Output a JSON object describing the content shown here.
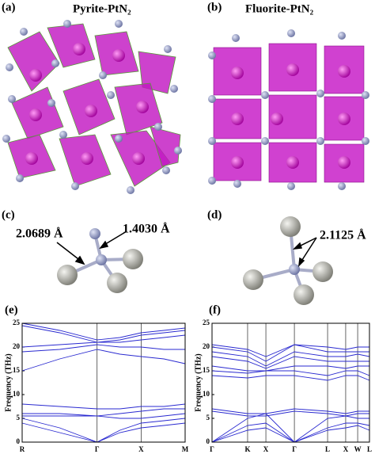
{
  "panels": [
    {
      "label": "(a)",
      "title": "Pyrite-PtN₂"
    },
    {
      "label": "(b)",
      "title": "Fluorite-PtN₂"
    },
    {
      "label": "(c)",
      "annotations": [
        "2.0689 Å",
        "1.4030 Å"
      ]
    },
    {
      "label": "(d)",
      "annotations": [
        "2.1125 Å"
      ]
    },
    {
      "label": "(e)"
    },
    {
      "label": "(f)"
    }
  ],
  "chart_data": [
    {
      "type": "line",
      "y_label": "Frequency (THz)",
      "x": [
        0,
        0.23,
        0.46,
        0.6,
        0.73,
        0.87,
        1
      ],
      "xlim": [
        0,
        1
      ],
      "xticks": [
        {
          "value": 0,
          "label": "R"
        },
        {
          "value": 0.46,
          "label": "Γ"
        },
        {
          "value": 0.73,
          "label": "X"
        },
        {
          "value": 1,
          "label": "M"
        }
      ],
      "ylim": [
        0,
        25
      ],
      "yticks": [
        0,
        5,
        10,
        15,
        20,
        25
      ],
      "series": [
        {
          "color": "#2a2ad0",
          "values": [
            25,
            23.5,
            21.5,
            22,
            23,
            23.5,
            24
          ]
        },
        {
          "color": "#2a2ad0",
          "values": [
            24.5,
            23,
            21,
            21.5,
            22.5,
            23,
            23.5
          ]
        },
        {
          "color": "#2a2ad0",
          "values": [
            20,
            20.5,
            21,
            21,
            21.5,
            22,
            22.5
          ]
        },
        {
          "color": "#2a2ad0",
          "values": [
            19,
            19.5,
            20.5,
            20,
            20,
            19.5,
            19.5
          ]
        },
        {
          "color": "#2a2ad0",
          "values": [
            15,
            17.5,
            19.5,
            18.5,
            18,
            17.5,
            16.5
          ]
        },
        {
          "color": "#2a2ad0",
          "values": [
            8,
            7.5,
            7,
            7,
            7.5,
            7.5,
            8
          ]
        },
        {
          "color": "#2a2ad0",
          "values": [
            6,
            6,
            5.5,
            6,
            6.5,
            7,
            7
          ]
        },
        {
          "color": "#2a2ad0",
          "values": [
            5.5,
            5.5,
            5.5,
            5,
            5,
            5.5,
            6
          ]
        },
        {
          "color": "#2a2ad0",
          "values": [
            5,
            3,
            0,
            2.5,
            4,
            4.5,
            5
          ]
        },
        {
          "color": "#2a2ad0",
          "values": [
            4,
            2,
            0,
            2,
            3,
            3.5,
            4
          ]
        }
      ]
    },
    {
      "type": "line",
      "y_label": "Frequency (THz)",
      "x": [
        0,
        0.226,
        0.342,
        0.523,
        0.734,
        0.849,
        0.925,
        1
      ],
      "xlim": [
        0,
        1
      ],
      "xticks": [
        {
          "value": 0,
          "label": "Γ"
        },
        {
          "value": 0.226,
          "label": "K"
        },
        {
          "value": 0.342,
          "label": "X"
        },
        {
          "value": 0.523,
          "label": "Γ"
        },
        {
          "value": 0.734,
          "label": "L"
        },
        {
          "value": 0.849,
          "label": "X"
        },
        {
          "value": 0.925,
          "label": "W"
        },
        {
          "value": 1,
          "label": "L"
        }
      ],
      "ylim": [
        0,
        25
      ],
      "yticks": [
        0,
        5,
        10,
        15,
        20,
        25
      ],
      "series": [
        {
          "color": "#2a2ad0",
          "values": [
            20.5,
            19.5,
            18,
            20.5,
            20,
            19.5,
            20,
            20
          ]
        },
        {
          "color": "#2a2ad0",
          "values": [
            20,
            19,
            17,
            20.5,
            19,
            19,
            19,
            19
          ]
        },
        {
          "color": "#2a2ad0",
          "values": [
            19,
            18,
            16,
            19,
            18,
            18,
            18.5,
            18
          ]
        },
        {
          "color": "#2a2ad0",
          "values": [
            18,
            17,
            15.5,
            18,
            17,
            17,
            17,
            17
          ]
        },
        {
          "color": "#2a2ad0",
          "values": [
            16,
            15,
            15,
            16,
            16,
            15.5,
            16,
            16
          ]
        },
        {
          "color": "#2a2ad0",
          "values": [
            15,
            14.5,
            15,
            15,
            14,
            15,
            15,
            14
          ]
        },
        {
          "color": "#2a2ad0",
          "values": [
            14,
            13.5,
            14,
            14,
            13,
            14,
            14,
            13
          ]
        },
        {
          "color": "#2a2ad0",
          "values": [
            7,
            6,
            6,
            7,
            6.5,
            6,
            6.5,
            6.5
          ]
        },
        {
          "color": "#2a2ad0",
          "values": [
            6.5,
            5.5,
            5.5,
            6.5,
            6,
            5.5,
            6,
            6
          ]
        },
        {
          "color": "#2a2ad0",
          "values": [
            0,
            5,
            6,
            0,
            5,
            5.5,
            5,
            5
          ]
        },
        {
          "color": "#2a2ad0",
          "values": [
            0,
            3.5,
            4,
            0,
            3,
            4,
            4,
            3.5
          ]
        },
        {
          "color": "#2a2ad0",
          "values": [
            0,
            2.5,
            3,
            0,
            2.5,
            3,
            3.5,
            2.5
          ]
        }
      ]
    }
  ]
}
